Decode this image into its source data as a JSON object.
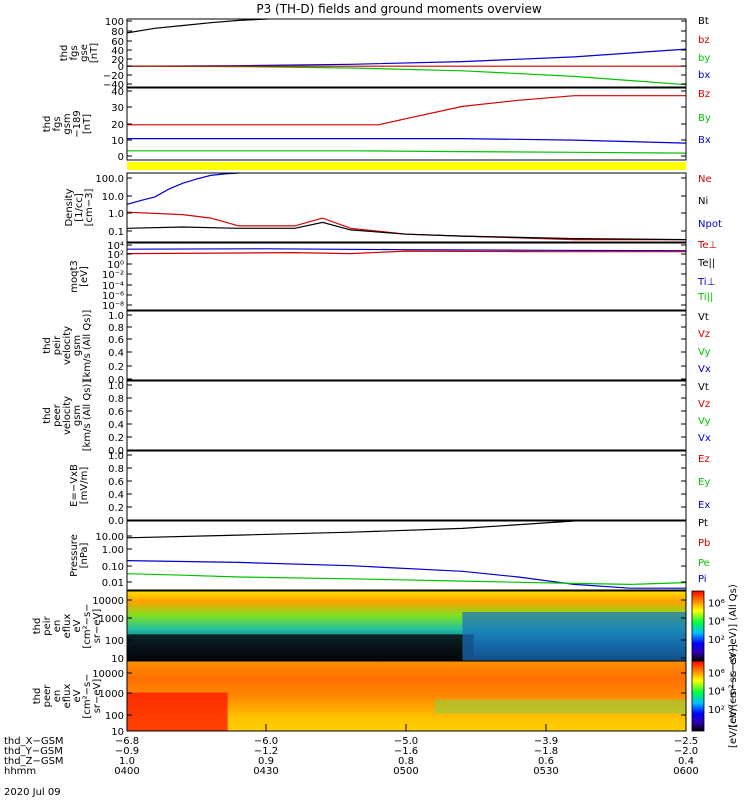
{
  "title": "P3 (TH-D) fields and ground moments overview",
  "date": "2020 Jul 09",
  "colors": {
    "black": "#000000",
    "red": "#d40000",
    "green": "#00c400",
    "blue": "#0000d0",
    "magenta": "#c000c0",
    "yellow": "#ffff00"
  },
  "chart_data": [
    {
      "id": "fgs-gse",
      "type": "line",
      "ylabel": [
        "thd",
        "fgs",
        "gse",
        "[nT]"
      ],
      "yticks": [
        "100",
        "80",
        "60",
        "40",
        "20",
        "0",
        "−20",
        "−40"
      ],
      "ylim": [
        -45,
        102
      ],
      "legend": [
        {
          "name": "Bt",
          "color": "black"
        },
        {
          "name": "bz",
          "color": "red"
        },
        {
          "name": "by",
          "color": "green"
        },
        {
          "name": "bx",
          "color": "blue"
        }
      ],
      "series": [
        {
          "name": "bx",
          "color": "blue",
          "x": [
            0,
            40,
            80,
            120,
            160,
            200
          ],
          "y": [
            0,
            1,
            4,
            10,
            20,
            37
          ]
        },
        {
          "name": "by",
          "color": "green",
          "x": [
            0,
            40,
            80,
            120,
            160,
            200
          ],
          "y": [
            0,
            -1,
            -4,
            -10,
            -22,
            -40
          ]
        },
        {
          "name": "bz",
          "color": "red",
          "x": [
            0,
            40,
            80,
            120,
            160,
            200
          ],
          "y": [
            0,
            0,
            0,
            0,
            0,
            0
          ]
        },
        {
          "name": "Bt",
          "color": "black",
          "x": [
            0,
            10,
            20,
            30,
            40,
            50
          ],
          "y": [
            72,
            82,
            88,
            94,
            99,
            102
          ]
        }
      ]
    },
    {
      "id": "fgs-gsm",
      "type": "line",
      "ylabel": [
        "thd",
        "fgs",
        "gsm",
        "−189",
        "[nT]"
      ],
      "yticks": [
        "40",
        "30",
        "20",
        "10",
        "0"
      ],
      "ylim": [
        -5,
        42
      ],
      "legend": [
        {
          "name": "Bz",
          "color": "red"
        },
        {
          "name": "By",
          "color": "green"
        },
        {
          "name": "Bx",
          "color": "blue"
        }
      ],
      "series": [
        {
          "name": "Bz",
          "color": "red",
          "x": [
            0,
            30,
            60,
            90,
            100,
            120,
            140,
            160,
            180,
            200
          ],
          "y": [
            18,
            18,
            18,
            18,
            22,
            30,
            34,
            37,
            37,
            37
          ]
        },
        {
          "name": "By",
          "color": "green",
          "x": [
            0,
            40,
            80,
            120,
            160,
            200
          ],
          "y": [
            1,
            1,
            1,
            0.5,
            0,
            -0.5
          ]
        },
        {
          "name": "Bx",
          "color": "blue",
          "x": [
            0,
            40,
            80,
            120,
            160,
            200
          ],
          "y": [
            9,
            9,
            9,
            9,
            8,
            6
          ]
        }
      ]
    },
    {
      "id": "density",
      "type": "line",
      "log": true,
      "ylabel": [
        "Density",
        "[1/cc]",
        "[cm−3]"
      ],
      "yticks": [
        "100.0",
        "10.0",
        "1.0",
        "0.1"
      ],
      "ylim": [
        0.06,
        200
      ],
      "legend": [
        {
          "name": "Ne",
          "color": "red"
        },
        {
          "name": "Ni",
          "color": "black"
        },
        {
          "name": "Npot",
          "color": "blue"
        }
      ],
      "series": [
        {
          "name": "Npot",
          "color": "blue",
          "x": [
            0,
            5,
            10,
            15,
            20,
            25,
            30,
            35,
            40
          ],
          "y": [
            5,
            8,
            12,
            30,
            60,
            100,
            150,
            180,
            200
          ]
        },
        {
          "name": "Ne",
          "color": "red",
          "x": [
            0,
            20,
            30,
            40,
            60,
            70,
            80,
            100,
            120,
            160,
            200
          ],
          "y": [
            2,
            1.5,
            1,
            0.4,
            0.4,
            1,
            0.3,
            0.15,
            0.12,
            0.08,
            0.08
          ]
        },
        {
          "name": "Ni",
          "color": "black",
          "x": [
            0,
            20,
            40,
            60,
            70,
            80,
            100,
            120,
            160,
            200
          ],
          "y": [
            0.3,
            0.35,
            0.3,
            0.3,
            0.6,
            0.25,
            0.15,
            0.12,
            0.09,
            0.08
          ]
        }
      ]
    },
    {
      "id": "moat",
      "type": "line",
      "log": true,
      "ylabel": [
        "moqt3",
        "[eV]"
      ],
      "yticks": [
        "10⁴",
        "10²",
        "10⁰",
        "10⁻²",
        "10⁻⁴",
        "10⁻⁶",
        "10⁻⁸"
      ],
      "ylim": [
        1e-09,
        100000.0
      ],
      "legend": [
        {
          "name": "Te⊥",
          "color": "red"
        },
        {
          "name": "Te||",
          "color": "black"
        },
        {
          "name": "Ti⊥",
          "color": "blue"
        },
        {
          "name": "Ti||",
          "color": "green"
        }
      ],
      "series": [
        {
          "name": "Ti⊥",
          "color": "blue",
          "x": [
            0,
            50,
            100,
            150,
            200
          ],
          "y": [
            5000,
            6000,
            4000,
            3000,
            2500
          ]
        },
        {
          "name": "Te⊥",
          "color": "red",
          "x": [
            0,
            40,
            60,
            80,
            100,
            150,
            200
          ],
          "y": [
            600,
            800,
            1000,
            600,
            2000,
            1500,
            1500
          ]
        }
      ]
    },
    {
      "id": "peir-vel",
      "type": "line",
      "ylabel": [
        "thd",
        "peir",
        "velocity",
        "gsm",
        "[km/s (All Qs)]"
      ],
      "yticks": [
        "1.0",
        "0.8",
        "0.6",
        "0.4",
        "0.2",
        "0.0"
      ],
      "ylim": [
        0,
        1
      ],
      "legend": [
        {
          "name": "Vt",
          "color": "black"
        },
        {
          "name": "Vz",
          "color": "red"
        },
        {
          "name": "Vy",
          "color": "green"
        },
        {
          "name": "Vx",
          "color": "blue"
        }
      ],
      "series": []
    },
    {
      "id": "peer-vel",
      "type": "line",
      "ylabel": [
        "thd",
        "peer",
        "velocity",
        "gsm",
        "[km/s (All Qs)]"
      ],
      "yticks": [
        "1.0",
        "0.8",
        "0.6",
        "0.4",
        "0.2",
        "0.0"
      ],
      "ylim": [
        0,
        1
      ],
      "legend": [
        {
          "name": "Vt",
          "color": "black"
        },
        {
          "name": "Vz",
          "color": "red"
        },
        {
          "name": "Vy",
          "color": "green"
        },
        {
          "name": "Vx",
          "color": "blue"
        }
      ],
      "series": []
    },
    {
      "id": "efield",
      "type": "line",
      "ylabel": [
        "E=−VxB",
        "[mV/m]"
      ],
      "yticks": [
        "1.0",
        "0.8",
        "0.6",
        "0.4",
        "0.2",
        "0.0"
      ],
      "ylim": [
        0,
        1
      ],
      "legend": [
        {
          "name": "Ez",
          "color": "red"
        },
        {
          "name": "Ey",
          "color": "green"
        },
        {
          "name": "Ex",
          "color": "blue"
        }
      ],
      "series": []
    },
    {
      "id": "pressure",
      "type": "line",
      "log": true,
      "ylabel": [
        "Pressure",
        "[nPa]"
      ],
      "yticks": [
        "10.00",
        "1.00",
        "0.10",
        "0.01"
      ],
      "ylim": [
        0.004,
        20
      ],
      "legend": [
        {
          "name": "Pt",
          "color": "black"
        },
        {
          "name": "Pb",
          "color": "red"
        },
        {
          "name": "Pe",
          "color": "green"
        },
        {
          "name": "Pi",
          "color": "blue"
        }
      ],
      "series": [
        {
          "name": "Pt",
          "color": "black",
          "x": [
            0,
            40,
            80,
            120,
            160
          ],
          "y": [
            2.5,
            3.5,
            5,
            8,
            20
          ]
        },
        {
          "name": "Pi",
          "color": "blue",
          "x": [
            0,
            40,
            80,
            120,
            140,
            160,
            180,
            200
          ],
          "y": [
            0.15,
            0.12,
            0.08,
            0.04,
            0.02,
            0.008,
            0.005,
            0.005
          ]
        },
        {
          "name": "Pe",
          "color": "green",
          "x": [
            0,
            20,
            40,
            80,
            120,
            160,
            180,
            200
          ],
          "y": [
            0.03,
            0.025,
            0.02,
            0.016,
            0.012,
            0.009,
            0.008,
            0.01
          ]
        }
      ]
    },
    {
      "id": "peir-spec",
      "type": "heatmap",
      "ylabel": [
        "thd",
        "peir",
        "en",
        "eflux",
        "eV",
        "[cm²−s−",
        "sr−eV]"
      ],
      "yticks": [
        "10000",
        "1000",
        "100",
        "10"
      ],
      "colorbar_ticks": [
        "10⁶",
        "10⁴",
        "10²"
      ],
      "colorbar_label": "[eV/(cm²−s−sr−eV)] (All Qs)"
    },
    {
      "id": "peer-spec",
      "type": "heatmap",
      "ylabel": [
        "thd",
        "peer",
        "en",
        "eflux",
        "eV",
        "[cm²−s−",
        "sr−eV]"
      ],
      "yticks": [
        "10000",
        "1000",
        "100",
        "10"
      ],
      "colorbar_ticks": [
        "10⁶",
        "10⁴",
        "10²"
      ],
      "colorbar_label": "[eV/(cm²−s−sr−eV)]"
    }
  ],
  "xaxis": {
    "rows": [
      {
        "label": "thd_X−GSM",
        "values": [
          "−6.8",
          "−6.0",
          "−5.0",
          "−3.9",
          "−2.5"
        ]
      },
      {
        "label": "thd_Y−GSM",
        "values": [
          "−0.9",
          "−1.2",
          "−1.6",
          "−1.8",
          "−2.0"
        ]
      },
      {
        "label": "thd_Z−GSM",
        "values": [
          "1.0",
          "0.9",
          "0.8",
          "0.6",
          "0.4"
        ]
      },
      {
        "label": "hhmm",
        "values": [
          "0400",
          "0430",
          "0500",
          "0530",
          "0600"
        ]
      }
    ]
  }
}
